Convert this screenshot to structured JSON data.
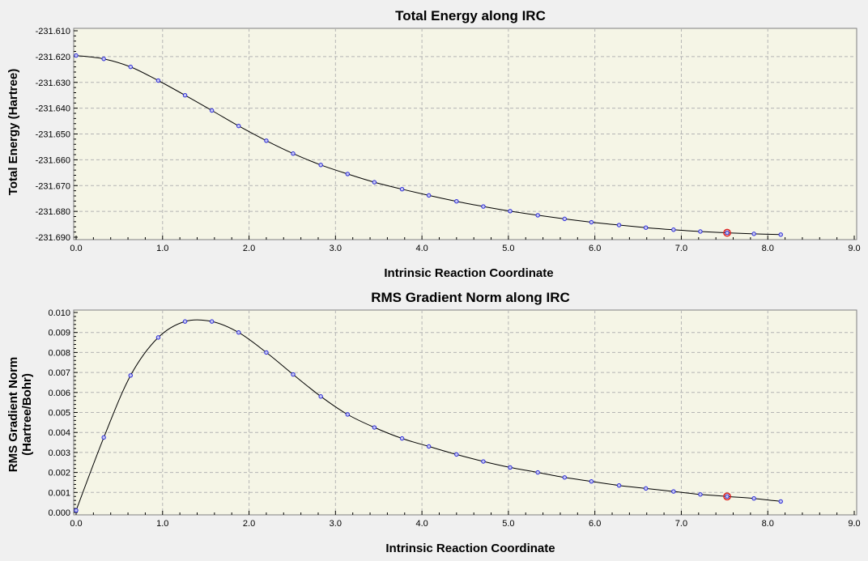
{
  "chart_data": [
    {
      "type": "line",
      "title": "Total Energy along IRC",
      "xlabel": "Intrinsic Reaction Coordinate",
      "ylabel": "Total Energy (Hartree)",
      "xlim": [
        0.0,
        9.0
      ],
      "ylim": [
        -231.69,
        -231.61
      ],
      "xticks": [
        "0.0",
        "1.0",
        "2.0",
        "3.0",
        "4.0",
        "5.0",
        "6.0",
        "7.0",
        "8.0",
        "9.0"
      ],
      "yticks": [
        "-231.610",
        "-231.620",
        "-231.630",
        "-231.640",
        "-231.650",
        "-231.660",
        "-231.670",
        "-231.680",
        "-231.690"
      ],
      "grid": true,
      "x": [
        0.0,
        0.32,
        0.63,
        0.95,
        1.26,
        1.57,
        1.88,
        2.2,
        2.51,
        2.83,
        3.14,
        3.45,
        3.77,
        4.08,
        4.4,
        4.71,
        5.02,
        5.34,
        5.65,
        5.96,
        6.28,
        6.59,
        6.91,
        7.22,
        7.53,
        7.84,
        8.15
      ],
      "y": [
        -231.6196,
        -231.6209,
        -231.624,
        -231.6293,
        -231.635,
        -231.6409,
        -231.6469,
        -231.6526,
        -231.6576,
        -231.662,
        -231.6655,
        -231.6687,
        -231.6714,
        -231.6738,
        -231.6761,
        -231.6781,
        -231.6799,
        -231.6815,
        -231.6829,
        -231.6842,
        -231.6853,
        -231.6863,
        -231.6871,
        -231.6878,
        -231.6883,
        -231.6887,
        -231.689
      ],
      "highlight_index": 24,
      "line_color": "#000000",
      "marker_color": "#2a2ad8",
      "highlight_color": "#dd2222",
      "plot_bg": "#f5f5e6"
    },
    {
      "type": "line",
      "title": "RMS Gradient Norm along IRC",
      "xlabel": "Intrinsic Reaction Coordinate",
      "ylabel": [
        "RMS Gradient Norm",
        "(Hartree/Bohr)"
      ],
      "xlim": [
        0.0,
        9.0
      ],
      "ylim": [
        0.0,
        0.01
      ],
      "xticks": [
        "0.0",
        "1.0",
        "2.0",
        "3.0",
        "4.0",
        "5.0",
        "6.0",
        "7.0",
        "8.0",
        "9.0"
      ],
      "yticks": [
        "0.010",
        "0.009",
        "0.008",
        "0.007",
        "0.006",
        "0.005",
        "0.004",
        "0.003",
        "0.002",
        "0.001",
        "0.000"
      ],
      "grid": true,
      "x": [
        0.0,
        0.32,
        0.63,
        0.95,
        1.26,
        1.57,
        1.88,
        2.2,
        2.51,
        2.83,
        3.14,
        3.45,
        3.77,
        4.08,
        4.4,
        4.71,
        5.02,
        5.34,
        5.65,
        5.96,
        6.28,
        6.59,
        6.91,
        7.22,
        7.53,
        7.84,
        8.15
      ],
      "y": [
        0.0001,
        0.00375,
        0.00685,
        0.00875,
        0.00955,
        0.00955,
        0.009,
        0.008,
        0.0069,
        0.0058,
        0.0049,
        0.00425,
        0.0037,
        0.0033,
        0.0029,
        0.00255,
        0.00225,
        0.002,
        0.00175,
        0.00155,
        0.00135,
        0.0012,
        0.00105,
        0.0009,
        0.0008,
        0.0007,
        0.00055
      ],
      "highlight_index": 24,
      "line_color": "#000000",
      "marker_color": "#2a2ad8",
      "highlight_color": "#dd2222",
      "plot_bg": "#f5f5e6"
    }
  ]
}
